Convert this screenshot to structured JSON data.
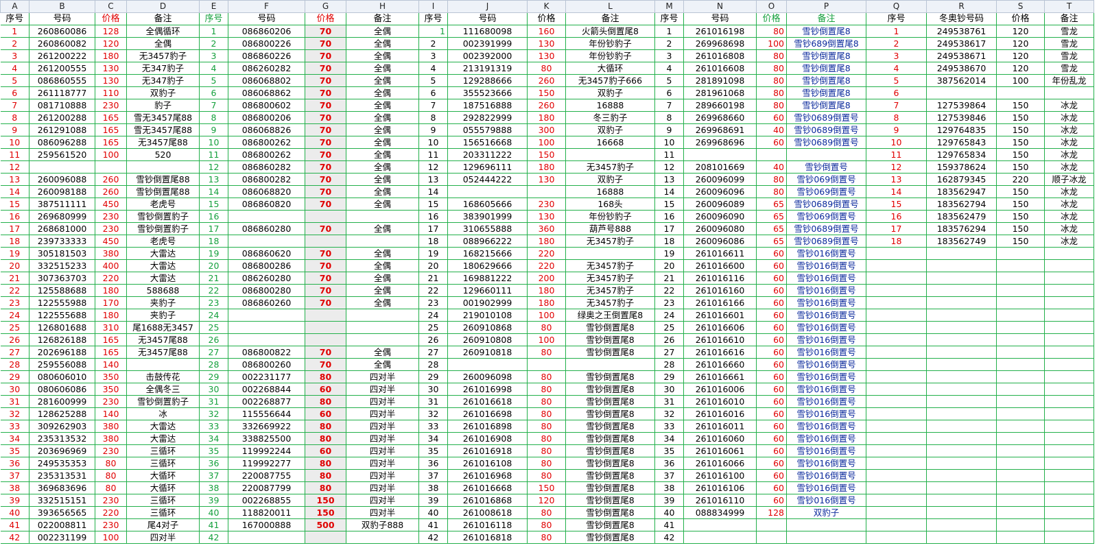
{
  "column_letters": [
    "A",
    "B",
    "C",
    "D",
    "E",
    "F",
    "G",
    "H",
    "I",
    "J",
    "K",
    "L",
    "M",
    "N",
    "O",
    "P",
    "Q",
    "R",
    "S",
    "T"
  ],
  "headers": [
    "序号",
    "号码",
    "价格",
    "备注",
    "序号",
    "号码",
    "价格",
    "备注",
    "序号",
    "号码",
    "价格",
    "备注",
    "序号",
    "号码",
    "价格",
    "备注",
    "序号",
    "冬奥钞号码",
    "价格",
    "备注"
  ],
  "rows": [
    [
      "1",
      "260860086",
      "128",
      "全偶循环",
      "1",
      "086860206",
      "70",
      "全偶",
      "1",
      "111680098",
      "160",
      "火箭头倒置尾8",
      "1",
      "261016198",
      "80",
      "雪钞倒置尾8",
      "1",
      "249538761",
      "120",
      "雪龙"
    ],
    [
      "2",
      "260860082",
      "120",
      "全偶",
      "2",
      "086800226",
      "70",
      "全偶",
      "2",
      "002391999",
      "130",
      "年份钞豹子",
      "2",
      "269968698",
      "100",
      "雪钞689倒置尾8",
      "2",
      "249538617",
      "120",
      "雪龙"
    ],
    [
      "3",
      "261200222",
      "180",
      "无3457豹子",
      "3",
      "086860226",
      "70",
      "全偶",
      "3",
      "002392000",
      "130",
      "年份钞豹子",
      "3",
      "261016808",
      "80",
      "雪钞倒置尾8",
      "3",
      "249538671",
      "120",
      "雪龙"
    ],
    [
      "4",
      "261200555",
      "130",
      "无347豹子",
      "4",
      "086260282",
      "70",
      "全偶",
      "4",
      "213191319",
      "80",
      "大循环",
      "4",
      "261016608",
      "80",
      "雪钞倒置尾8",
      "4",
      "249538670",
      "120",
      "雪龙"
    ],
    [
      "5",
      "086860555",
      "130",
      "无347豹子",
      "5",
      "086068802",
      "70",
      "全偶",
      "5",
      "129288666",
      "260",
      "无3457豹子666",
      "5",
      "281891098",
      "80",
      "雪钞倒置尾8",
      "5",
      "387562014",
      "100",
      "年份乱龙"
    ],
    [
      "6",
      "261118777",
      "110",
      "双豹子",
      "6",
      "086068862",
      "70",
      "全偶",
      "6",
      "355523666",
      "150",
      "双豹子",
      "6",
      "281961068",
      "80",
      "雪钞倒置尾8",
      "6",
      "",
      "",
      ""
    ],
    [
      "7",
      "081710888",
      "230",
      "豹子",
      "7",
      "086800602",
      "70",
      "全偶",
      "7",
      "187516888",
      "260",
      "16888",
      "7",
      "289660198",
      "80",
      "雪钞倒置尾8",
      "7",
      "127539864",
      "150",
      "冰龙"
    ],
    [
      "8",
      "261200288",
      "165",
      "雪无3457尾88",
      "8",
      "086800206",
      "70",
      "全偶",
      "8",
      "292822999",
      "180",
      "冬三豹子",
      "8",
      "269968660",
      "60",
      "雪钞0689倒置号",
      "8",
      "127539846",
      "150",
      "冰龙"
    ],
    [
      "9",
      "261291088",
      "165",
      "雪无3457尾88",
      "9",
      "086068826",
      "70",
      "全偶",
      "9",
      "055579888",
      "300",
      "双豹子",
      "9",
      "269968691",
      "40",
      "雪钞0689倒置号",
      "9",
      "129764835",
      "150",
      "冰龙"
    ],
    [
      "10",
      "086096288",
      "165",
      "无3457尾88",
      "10",
      "086800262",
      "70",
      "全偶",
      "10",
      "156516668",
      "100",
      "16668",
      "10",
      "269968696",
      "60",
      "雪钞0689倒置号",
      "10",
      "129765843",
      "150",
      "冰龙"
    ],
    [
      "11",
      "259561520",
      "100",
      "520",
      "11",
      "086800262",
      "70",
      "全偶",
      "11",
      "203311222",
      "150",
      "",
      "11",
      "",
      "",
      "",
      "11",
      "129765834",
      "150",
      "冰龙"
    ],
    [
      "12",
      "",
      "",
      "",
      "12",
      "086860282",
      "70",
      "全偶",
      "12",
      "129696111",
      "180",
      "无3457豹子",
      "12",
      "208101669",
      "40",
      "雪钞倒置号",
      "12",
      "159378624",
      "150",
      "冰龙"
    ],
    [
      "13",
      "260096088",
      "260",
      "雪钞倒置尾88",
      "13",
      "086800282",
      "70",
      "全偶",
      "13",
      "052444222",
      "130",
      "双豹子",
      "13",
      "260096099",
      "80",
      "雪钞069倒置号",
      "13",
      "162879345",
      "220",
      "顺子冰龙"
    ],
    [
      "14",
      "260098188",
      "260",
      "雪钞倒置尾88",
      "14",
      "086068820",
      "70",
      "全偶",
      "14",
      "",
      "",
      "16888",
      "14",
      "260096096",
      "80",
      "雪钞069倒置号",
      "14",
      "183562947",
      "150",
      "冰龙"
    ],
    [
      "15",
      "387511111",
      "450",
      "老虎号",
      "15",
      "086860820",
      "70",
      "全偶",
      "15",
      "168605666",
      "230",
      "168头",
      "15",
      "260096089",
      "65",
      "雪钞0689倒置号",
      "15",
      "183562794",
      "150",
      "冰龙"
    ],
    [
      "16",
      "269680999",
      "230",
      "雪钞倒置豹子",
      "16",
      "",
      "",
      "",
      "16",
      "383901999",
      "130",
      "年份钞豹子",
      "16",
      "260096090",
      "65",
      "雪钞069倒置号",
      "16",
      "183562479",
      "150",
      "冰龙"
    ],
    [
      "17",
      "268681000",
      "230",
      "雪钞倒置豹子",
      "17",
      "086860280",
      "70",
      "全偶",
      "17",
      "310655888",
      "360",
      "葫芦号888",
      "17",
      "260096080",
      "65",
      "雪钞0689倒置号",
      "17",
      "183576294",
      "150",
      "冰龙"
    ],
    [
      "18",
      "239733333",
      "450",
      "老虎号",
      "18",
      "",
      "",
      "",
      "18",
      "088966222",
      "180",
      "无3457豹子",
      "18",
      "260096086",
      "65",
      "雪钞0689倒置号",
      "18",
      "183562749",
      "150",
      "冰龙"
    ],
    [
      "19",
      "305181503",
      "380",
      "大雷达",
      "19",
      "086860620",
      "70",
      "全偶",
      "19",
      "168215666",
      "220",
      "",
      "19",
      "261016611",
      "60",
      "雪钞016倒置号",
      "",
      "",
      "",
      ""
    ],
    [
      "20",
      "332515233",
      "400",
      "大雷达",
      "20",
      "086800286",
      "70",
      "全偶",
      "20",
      "180629666",
      "220",
      "无3457豹子",
      "20",
      "261016600",
      "60",
      "雪钞016倒置号",
      "",
      "",
      "",
      ""
    ],
    [
      "21",
      "307363703",
      "220",
      "大雷达",
      "21",
      "086260280",
      "70",
      "全偶",
      "21",
      "169881222",
      "200",
      "无3457豹子",
      "21",
      "261016116",
      "60",
      "雪钞016倒置号",
      "",
      "",
      "",
      ""
    ],
    [
      "22",
      "125588688",
      "180",
      "588688",
      "22",
      "086800280",
      "70",
      "全偶",
      "22",
      "129660111",
      "180",
      "无3457豹子",
      "22",
      "261016160",
      "60",
      "雪钞016倒置号",
      "",
      "",
      "",
      ""
    ],
    [
      "23",
      "122555988",
      "170",
      "夹豹子",
      "23",
      "086860260",
      "70",
      "全偶",
      "23",
      "001902999",
      "180",
      "无3457豹子",
      "23",
      "261016166",
      "60",
      "雪钞016倒置号",
      "",
      "",
      "",
      ""
    ],
    [
      "24",
      "122555688",
      "180",
      "夹豹子",
      "24",
      "",
      "",
      "",
      "24",
      "219010108",
      "100",
      "绿奥之王倒置尾8",
      "24",
      "261016601",
      "60",
      "雪钞016倒置号",
      "",
      "",
      "",
      ""
    ],
    [
      "25",
      "126801688",
      "310",
      "尾1688无3457",
      "25",
      "",
      "",
      "",
      "25",
      "260910868",
      "80",
      "雪钞倒置尾8",
      "25",
      "261016606",
      "60",
      "雪钞016倒置号",
      "",
      "",
      "",
      ""
    ],
    [
      "26",
      "126826188",
      "165",
      "无3457尾88",
      "26",
      "",
      "",
      "",
      "26",
      "260910808",
      "100",
      "雪钞倒置尾8",
      "26",
      "261016610",
      "60",
      "雪钞016倒置号",
      "",
      "",
      "",
      ""
    ],
    [
      "27",
      "202696188",
      "165",
      "无3457尾88",
      "27",
      "086800822",
      "70",
      "全偶",
      "27",
      "260910818",
      "80",
      "雪钞倒置尾8",
      "27",
      "261016616",
      "60",
      "雪钞016倒置号",
      "",
      "",
      "",
      ""
    ],
    [
      "28",
      "259556088",
      "140",
      "",
      "28",
      "086800260",
      "70",
      "全偶",
      "28",
      "",
      "",
      "",
      "28",
      "261016660",
      "60",
      "雪钞016倒置号",
      "",
      "",
      "",
      ""
    ],
    [
      "29",
      "080606010",
      "350",
      "击鼓传花",
      "29",
      "002231177",
      "80",
      "四对半",
      "29",
      "260096098",
      "80",
      "雪钞倒置尾8",
      "29",
      "261016661",
      "60",
      "雪钞016倒置号",
      "",
      "",
      "",
      ""
    ],
    [
      "30",
      "080606086",
      "350",
      "全偶冬三",
      "30",
      "002268844",
      "60",
      "四对半",
      "30",
      "261016998",
      "80",
      "雪钞倒置尾8",
      "30",
      "261016006",
      "60",
      "雪钞016倒置号",
      "",
      "",
      "",
      ""
    ],
    [
      "31",
      "281600999",
      "230",
      "雪钞倒置豹子",
      "31",
      "002268877",
      "80",
      "四对半",
      "31",
      "261016618",
      "80",
      "雪钞倒置尾8",
      "31",
      "261016010",
      "60",
      "雪钞016倒置号",
      "",
      "",
      "",
      ""
    ],
    [
      "32",
      "128625288",
      "140",
      "冰",
      "32",
      "115556644",
      "60",
      "四对半",
      "32",
      "261016698",
      "80",
      "雪钞倒置尾8",
      "32",
      "261016016",
      "60",
      "雪钞016倒置号",
      "",
      "",
      "",
      ""
    ],
    [
      "33",
      "309262903",
      "380",
      "大雷达",
      "33",
      "332669922",
      "80",
      "四对半",
      "33",
      "261016898",
      "80",
      "雪钞倒置尾8",
      "33",
      "261016011",
      "60",
      "雪钞016倒置号",
      "",
      "",
      "",
      ""
    ],
    [
      "34",
      "235313532",
      "380",
      "大雷达",
      "34",
      "338825500",
      "80",
      "四对半",
      "34",
      "261016908",
      "80",
      "雪钞倒置尾8",
      "34",
      "261016060",
      "60",
      "雪钞016倒置号",
      "",
      "",
      "",
      ""
    ],
    [
      "35",
      "203696969",
      "230",
      "三循环",
      "35",
      "119992244",
      "60",
      "四对半",
      "35",
      "261016918",
      "80",
      "雪钞倒置尾8",
      "35",
      "261016061",
      "60",
      "雪钞016倒置号",
      "",
      "",
      "",
      ""
    ],
    [
      "36",
      "249535353",
      "80",
      "三循环",
      "36",
      "119992277",
      "80",
      "四对半",
      "36",
      "261016108",
      "80",
      "雪钞倒置尾8",
      "36",
      "261016066",
      "60",
      "雪钞016倒置号",
      "",
      "",
      "",
      ""
    ],
    [
      "37",
      "235313531",
      "80",
      "大循环",
      "37",
      "220087755",
      "80",
      "四对半",
      "37",
      "261016968",
      "80",
      "雪钞倒置尾8",
      "37",
      "261016100",
      "60",
      "雪钞016倒置号",
      "",
      "",
      "",
      ""
    ],
    [
      "38",
      "369683696",
      "80",
      "大循环",
      "38",
      "220087799",
      "80",
      "四对半",
      "38",
      "261016668",
      "150",
      "雪钞倒置尾8",
      "38",
      "261016106",
      "60",
      "雪钞016倒置号",
      "",
      "",
      "",
      ""
    ],
    [
      "39",
      "332515151",
      "230",
      "三循环",
      "39",
      "002268855",
      "150",
      "四对半",
      "39",
      "261016868",
      "120",
      "雪钞倒置尾8",
      "39",
      "261016110",
      "60",
      "雪钞016倒置号",
      "",
      "",
      "",
      ""
    ],
    [
      "40",
      "393656565",
      "220",
      "三循环",
      "40",
      "118820011",
      "150",
      "四对半",
      "40",
      "261008618",
      "80",
      "雪钞倒置尾8",
      "40",
      "088834999",
      "128",
      "双豹子",
      "",
      "",
      "",
      ""
    ],
    [
      "41",
      "022008811",
      "230",
      "尾4对子",
      "41",
      "167000888",
      "500",
      "双豹子888",
      "41",
      "261016118",
      "80",
      "雪钞倒置尾8",
      "41",
      "",
      "",
      "",
      "",
      "",
      "",
      ""
    ],
    [
      "42",
      "002231199",
      "100",
      "四对半",
      "42",
      "",
      "",
      "",
      "42",
      "261016818",
      "80",
      "雪钞倒置尾8",
      "42",
      "",
      "",
      "",
      "",
      "",
      "",
      ""
    ]
  ]
}
